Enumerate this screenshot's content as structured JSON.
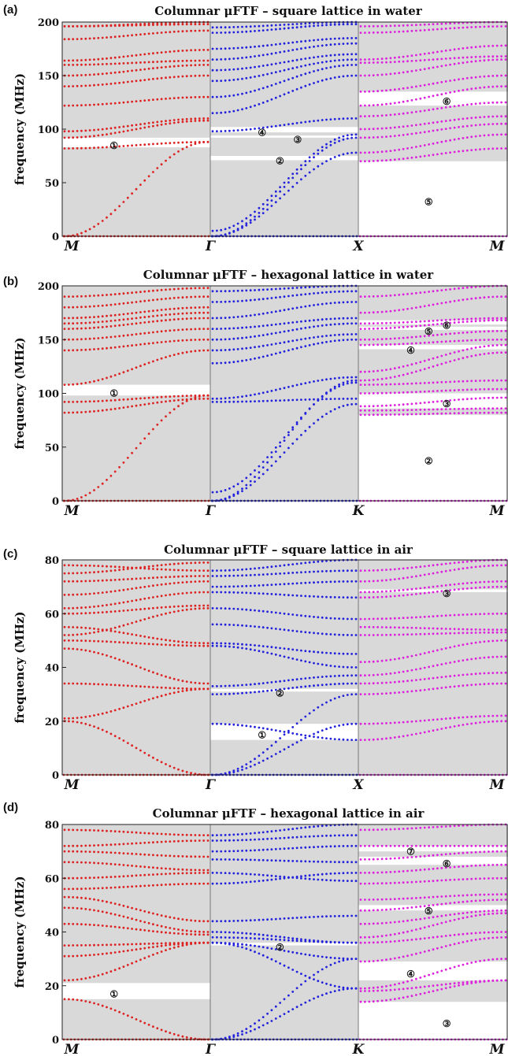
{
  "chart_data": [
    {
      "panel": "(a)",
      "title": "Columnar  μFTF – square lattice in water",
      "type": "scatter",
      "ylabel": "frequency (MHz)",
      "ylim": [
        0,
        200
      ],
      "yticks": [
        0,
        50,
        100,
        150,
        200
      ],
      "xticks": [
        "M",
        "Γ",
        "X",
        "M"
      ],
      "segment_colors": [
        "#dd2222",
        "#2222dd",
        "#dd22dd"
      ],
      "grid": false,
      "bands": {
        "MΓ": [
          [
            0,
            88
          ],
          [
            82,
            88
          ],
          [
            92,
            108
          ],
          [
            98,
            110
          ],
          [
            122,
            130
          ],
          [
            140,
            150
          ],
          [
            150,
            160
          ],
          [
            160,
            164
          ],
          [
            164,
            174
          ],
          [
            184,
            192
          ],
          [
            196,
            200
          ],
          [
            196,
            198
          ]
        ],
        "ΓX": [
          [
            0,
            78
          ],
          [
            0,
            92
          ],
          [
            5,
            95
          ],
          [
            98,
            110
          ],
          [
            115,
            150
          ],
          [
            130,
            160
          ],
          [
            145,
            165
          ],
          [
            155,
            170
          ],
          [
            165,
            180
          ],
          [
            175,
            185
          ],
          [
            190,
            198
          ],
          [
            195,
            200
          ]
        ],
        "XM": [
          [
            70,
            82
          ],
          [
            78,
            95
          ],
          [
            92,
            105
          ],
          [
            100,
            112
          ],
          [
            112,
            125
          ],
          [
            122,
            140
          ],
          [
            135,
            150
          ],
          [
            150,
            165
          ],
          [
            162,
            168
          ],
          [
            165,
            178
          ],
          [
            190,
            196
          ],
          [
            196,
            200
          ]
        ]
      },
      "gaps": [
        {
          "label": "①",
          "segment": "MΓ",
          "fmin": 83,
          "fmax": 92
        },
        {
          "label": "②",
          "segment": "ΓX",
          "fmin": 71,
          "fmax": 75
        },
        {
          "label": "③",
          "segment": "ΓX",
          "fmin": 92,
          "fmax": 94
        },
        {
          "label": "④",
          "segment": "ΓX",
          "fmin": 97,
          "fmax": 102
        },
        {
          "label": "⑤",
          "segment": "XM",
          "fmin": 0,
          "fmax": 70
        },
        {
          "label": "⑥",
          "segment": "XM",
          "fmin": 122,
          "fmax": 135
        }
      ]
    },
    {
      "panel": "(b)",
      "title": "Columnar  μFTF – hexagonal lattice in water",
      "type": "scatter",
      "ylabel": "frequency (MHz)",
      "ylim": [
        0,
        200
      ],
      "yticks": [
        0,
        50,
        100,
        150,
        200
      ],
      "xticks": [
        "M",
        "Γ",
        "K",
        "M"
      ],
      "segment_colors": [
        "#dd2222",
        "#2222dd",
        "#dd22dd"
      ],
      "grid": false,
      "bands": {
        "MΓ": [
          [
            0,
            98
          ],
          [
            82,
            95
          ],
          [
            92,
            98
          ],
          [
            108,
            140
          ],
          [
            140,
            150
          ],
          [
            150,
            160
          ],
          [
            160,
            170
          ],
          [
            165,
            175
          ],
          [
            170,
            180
          ],
          [
            180,
            190
          ],
          [
            190,
            198
          ]
        ],
        "ΓK": [
          [
            0,
            112
          ],
          [
            0,
            90
          ],
          [
            8,
            110
          ],
          [
            92,
            95
          ],
          [
            95,
            115
          ],
          [
            128,
            150
          ],
          [
            140,
            155
          ],
          [
            150,
            165
          ],
          [
            160,
            170
          ],
          [
            170,
            185
          ],
          [
            185,
            195
          ],
          [
            195,
            200
          ]
        ],
        "KM": [
          [
            80,
            82
          ],
          [
            84,
            86
          ],
          [
            88,
            96
          ],
          [
            100,
            104
          ],
          [
            108,
            112
          ],
          [
            112,
            138
          ],
          [
            120,
            145
          ],
          [
            145,
            150
          ],
          [
            150,
            158
          ],
          [
            160,
            168
          ],
          [
            165,
            170
          ],
          [
            175,
            190
          ],
          [
            190,
            200
          ]
        ]
      },
      "gaps": [
        {
          "label": "①",
          "segment": "MΓ",
          "fmin": 98,
          "fmax": 108
        },
        {
          "label": "②",
          "segment": "KM",
          "fmin": 0,
          "fmax": 80
        },
        {
          "label": "③",
          "segment": "KM",
          "fmin": 86,
          "fmax": 100
        },
        {
          "label": "④",
          "segment": "KM",
          "fmin": 141,
          "fmax": 145
        },
        {
          "label": "⑤",
          "segment": "KM",
          "fmin": 159,
          "fmax": 162
        },
        {
          "label": "⑥",
          "segment": "KM",
          "fmin": 164,
          "fmax": 168
        }
      ]
    },
    {
      "panel": "(c)",
      "title": "Columnar  μFTF – square lattice in air",
      "type": "scatter",
      "ylabel": "frequency (MHz)",
      "ylim": [
        0,
        80
      ],
      "yticks": [
        0,
        20,
        40,
        60,
        80
      ],
      "xticks": [
        "M",
        "Γ",
        "X",
        "M"
      ],
      "segment_colors": [
        "#dd2222",
        "#2222dd",
        "#dd22dd"
      ],
      "grid": false,
      "bands": {
        "MΓ": [
          [
            20,
            0
          ],
          [
            21,
            32
          ],
          [
            34,
            32
          ],
          [
            47,
            34
          ],
          [
            50,
            48
          ],
          [
            52,
            62
          ],
          [
            55,
            49
          ],
          [
            60,
            63
          ],
          [
            62,
            68
          ],
          [
            67,
            72
          ],
          [
            72,
            74
          ],
          [
            75,
            79
          ],
          [
            78,
            76
          ]
        ],
        "ΓX": [
          [
            0,
            19
          ],
          [
            0,
            30
          ],
          [
            19,
            13
          ],
          [
            30,
            34
          ],
          [
            33,
            37
          ],
          [
            48,
            40
          ],
          [
            49,
            45
          ],
          [
            56,
            52
          ],
          [
            62,
            58
          ],
          [
            68,
            66
          ],
          [
            70,
            72
          ],
          [
            74,
            76
          ],
          [
            76,
            80
          ]
        ],
        "XM": [
          [
            13,
            20
          ],
          [
            19,
            22
          ],
          [
            30,
            34
          ],
          [
            34,
            38
          ],
          [
            37,
            44
          ],
          [
            42,
            50
          ],
          [
            52,
            53
          ],
          [
            55,
            54
          ],
          [
            58,
            60
          ],
          [
            66,
            70
          ],
          [
            68,
            72
          ],
          [
            72,
            78
          ],
          [
            76,
            80
          ]
        ]
      },
      "gaps": [
        {
          "label": "①",
          "segment": "ΓX",
          "fmin": 13,
          "fmax": 19
        },
        {
          "label": "②",
          "segment": "ΓX",
          "fmin": 31,
          "fmax": 32
        },
        {
          "label": "③",
          "segment": "XM",
          "fmin": 68,
          "fmax": 69
        }
      ]
    },
    {
      "panel": "(d)",
      "title": "Columnar  μFTF – hexagonal lattice in air",
      "type": "scatter",
      "ylabel": "frequency (MHz)",
      "ylim": [
        0,
        80
      ],
      "yticks": [
        0,
        20,
        40,
        60,
        80
      ],
      "xticks": [
        "M",
        "Γ",
        "K",
        "M"
      ],
      "segment_colors": [
        "#dd2222",
        "#2222dd",
        "#dd22dd"
      ],
      "grid": false,
      "bands": {
        "MΓ": [
          [
            15,
            0
          ],
          [
            22,
            36
          ],
          [
            31,
            36
          ],
          [
            35,
            36
          ],
          [
            43,
            39
          ],
          [
            49,
            40
          ],
          [
            53,
            44
          ],
          [
            56,
            58
          ],
          [
            60,
            62
          ],
          [
            66,
            63
          ],
          [
            70,
            68
          ],
          [
            72,
            74
          ],
          [
            78,
            76
          ]
        ],
        "ΓK": [
          [
            0,
            19
          ],
          [
            0,
            30
          ],
          [
            36,
            19
          ],
          [
            36,
            30
          ],
          [
            38,
            36
          ],
          [
            40,
            36
          ],
          [
            44,
            46
          ],
          [
            58,
            62
          ],
          [
            62,
            59
          ],
          [
            67,
            66
          ],
          [
            70,
            72
          ],
          [
            74,
            76
          ],
          [
            76,
            80
          ]
        ],
        "KM": [
          [
            14,
            22
          ],
          [
            18,
            22
          ],
          [
            19,
            30
          ],
          [
            29,
            38
          ],
          [
            36,
            40
          ],
          [
            38,
            47
          ],
          [
            43,
            48
          ],
          [
            48,
            52
          ],
          [
            52,
            54
          ],
          [
            58,
            60
          ],
          [
            62,
            65
          ],
          [
            67,
            70
          ],
          [
            72,
            72
          ],
          [
            78,
            80
          ]
        ]
      },
      "gaps": [
        {
          "label": "①",
          "segment": "MΓ",
          "fmin": 15,
          "fmax": 21
        },
        {
          "label": "②",
          "segment": "ΓK",
          "fmin": 35,
          "fmax": 36
        },
        {
          "label": "③",
          "segment": "KM",
          "fmin": 0,
          "fmax": 14
        },
        {
          "label": "④",
          "segment": "KM",
          "fmin": 22,
          "fmax": 29
        },
        {
          "label": "⑤",
          "segment": "KM",
          "fmin": 48,
          "fmax": 50
        },
        {
          "label": "⑥",
          "segment": "KM",
          "fmin": 65,
          "fmax": 68
        },
        {
          "label": "⑦",
          "segment": "KM",
          "fmin": 70,
          "fmax": 72
        }
      ]
    }
  ]
}
